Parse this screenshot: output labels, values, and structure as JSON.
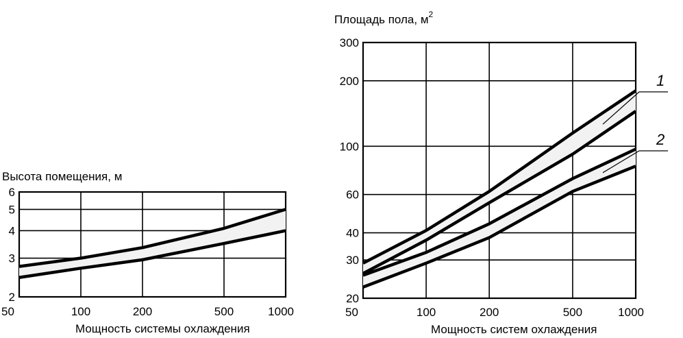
{
  "chart_data": [
    {
      "type": "area",
      "title": "",
      "ylabel": "Высота помещения, м",
      "xlabel": "Мощность системы охлаждения",
      "xscale": "log",
      "yscale": "log",
      "xlim": [
        50,
        1000
      ],
      "ylim": [
        2,
        6
      ],
      "xticks": [
        "50",
        "100",
        "200",
        "500",
        "1000"
      ],
      "yticks": [
        "2",
        "3",
        "4",
        "5",
        "6"
      ],
      "grid": true,
      "series": [
        {
          "name": "",
          "x": [
            50,
            100,
            200,
            500,
            1000
          ],
          "upper": [
            2.75,
            3.0,
            3.35,
            4.1,
            5.0
          ],
          "lower": [
            2.45,
            2.7,
            2.95,
            3.5,
            4.0
          ]
        }
      ]
    },
    {
      "type": "area",
      "title": "",
      "ylabel": "Площадь пола, м",
      "ylabel_sup": "2",
      "xlabel": "Мощность систем охлаждения",
      "xscale": "log",
      "yscale": "log",
      "xlim": [
        50,
        1000
      ],
      "ylim": [
        20,
        300
      ],
      "xticks": [
        "50",
        "100",
        "200",
        "500",
        "1000"
      ],
      "yticks": [
        "20",
        "30",
        "40",
        "60",
        "100",
        "200",
        "300"
      ],
      "grid": true,
      "series": [
        {
          "name": "1",
          "x": [
            50,
            100,
            200,
            500,
            1000
          ],
          "upper": [
            29,
            41,
            62,
            115,
            180
          ],
          "lower": [
            26,
            37,
            55,
            92,
            145
          ]
        },
        {
          "name": "2",
          "x": [
            50,
            100,
            200,
            500,
            1000
          ],
          "upper": [
            25.5,
            32.5,
            44,
            71,
            97
          ],
          "lower": [
            22.5,
            29,
            38,
            62,
            81
          ]
        }
      ]
    }
  ]
}
